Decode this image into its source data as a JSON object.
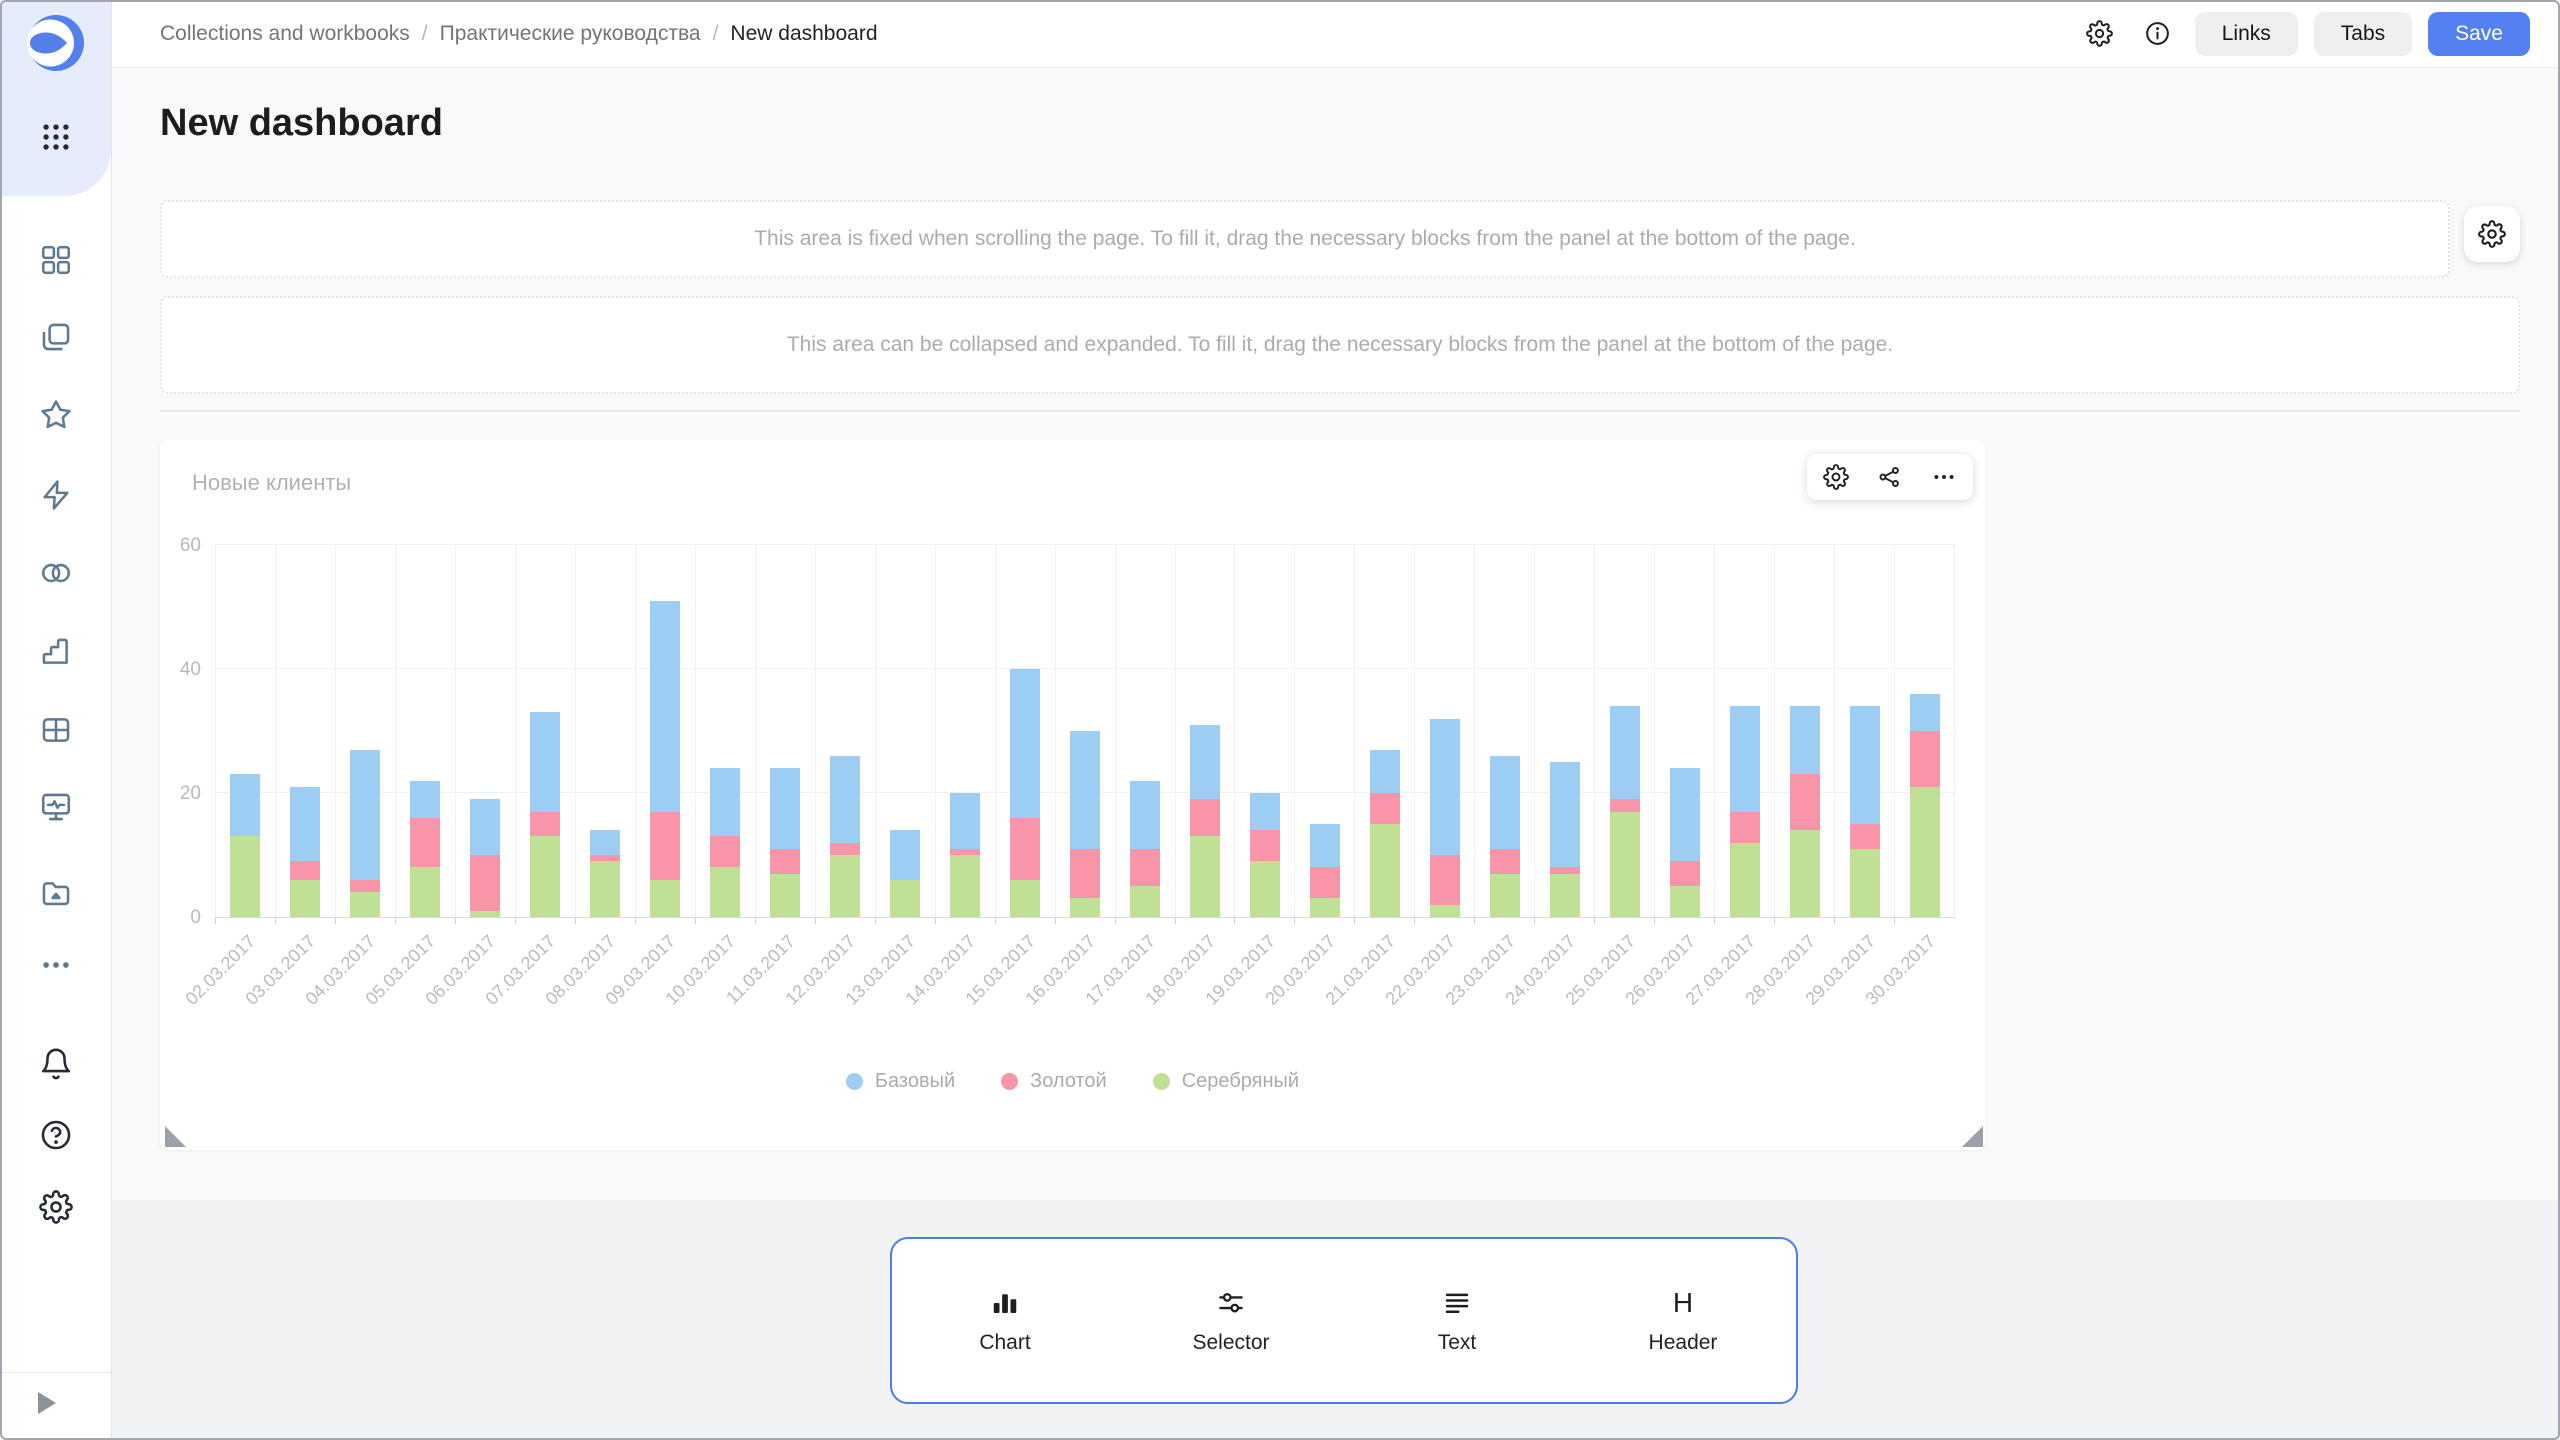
{
  "topbar": {
    "breadcrumbs": [
      {
        "label": "Collections and workbooks"
      },
      {
        "label": "Практические руководства"
      },
      {
        "label": "New dashboard"
      }
    ],
    "separator": "/",
    "icons": [
      "settings-gear",
      "info"
    ],
    "buttons": {
      "links": "Links",
      "tabs": "Tabs",
      "save": "Save"
    },
    "save_color": "#5481f2"
  },
  "sidebar": {
    "icons": [
      "datalens-logo",
      "app-grid",
      "collections",
      "workbooks",
      "favorites-star",
      "editor-lightning",
      "connections",
      "charts",
      "datasets-table",
      "dashboards-monitor",
      "storage-folder",
      "more-ellipsis",
      "notifications-bell",
      "help",
      "settings-gear",
      "expand-arrow"
    ]
  },
  "page": {
    "title": "New dashboard"
  },
  "placeholders": {
    "fixed_area_text": "This area is fixed when scrolling the page. To fill it, drag the necessary blocks from the panel at the bottom of the page.",
    "collapsible_area_text": "This area can be collapsed and expanded. To fill it, drag the necessary blocks from the panel at the bottom of the page."
  },
  "widget": {
    "title": "Новые клиенты",
    "toolbar_icons": [
      "settings-gear",
      "links-relations",
      "more-ellipsis"
    ]
  },
  "chart_data": {
    "type": "bar",
    "stacked": true,
    "title": "Новые клиенты",
    "categories": [
      "02.03.2017",
      "03.03.2017",
      "04.03.2017",
      "05.03.2017",
      "06.03.2017",
      "07.03.2017",
      "08.03.2017",
      "09.03.2017",
      "10.03.2017",
      "11.03.2017",
      "12.03.2017",
      "13.03.2017",
      "14.03.2017",
      "15.03.2017",
      "16.03.2017",
      "17.03.2017",
      "18.03.2017",
      "19.03.2017",
      "20.03.2017",
      "21.03.2017",
      "22.03.2017",
      "23.03.2017",
      "24.03.2017",
      "25.03.2017",
      "26.03.2017",
      "27.03.2017",
      "28.03.2017",
      "29.03.2017",
      "30.03.2017"
    ],
    "series": [
      {
        "name": "Базовый",
        "color": "#9ecdf3",
        "values": [
          10,
          12,
          21,
          6,
          9,
          16,
          4,
          34,
          11,
          13,
          14,
          8,
          9,
          24,
          19,
          11,
          12,
          6,
          7,
          7,
          22,
          15,
          17,
          15,
          15,
          17,
          11,
          19,
          6
        ]
      },
      {
        "name": "Золотой",
        "color": "#f995a9",
        "values": [
          0,
          3,
          2,
          8,
          9,
          4,
          1,
          11,
          5,
          4,
          2,
          0,
          1,
          10,
          8,
          6,
          6,
          5,
          5,
          5,
          8,
          4,
          1,
          2,
          4,
          5,
          9,
          4,
          9
        ]
      },
      {
        "name": "Серебряный",
        "color": "#c0e096",
        "values": [
          13,
          6,
          4,
          8,
          1,
          13,
          9,
          6,
          8,
          7,
          10,
          6,
          10,
          6,
          3,
          5,
          13,
          9,
          3,
          15,
          2,
          7,
          7,
          17,
          5,
          12,
          14,
          11,
          21
        ]
      }
    ],
    "stack_order_bottom_to_top": [
      "Серебряный",
      "Золотой",
      "Базовый"
    ],
    "xlabel": "",
    "ylabel": "",
    "ylim": [
      0,
      60
    ],
    "yticks": [
      0,
      20,
      40,
      60
    ],
    "grid": true,
    "legend_position": "bottom"
  },
  "dock": {
    "items": [
      {
        "label": "Chart",
        "icon": "bar-chart"
      },
      {
        "label": "Selector",
        "icon": "sliders"
      },
      {
        "label": "Text",
        "icon": "text-lines"
      },
      {
        "label": "Header",
        "icon": "header-h",
        "glyph": "H"
      }
    ],
    "border_color": "#4d7af0"
  }
}
